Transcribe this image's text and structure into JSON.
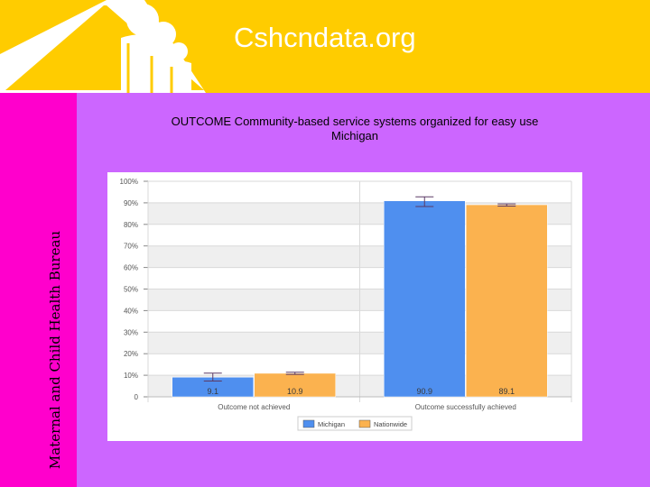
{
  "header": {
    "site_title": "Cshcndata.org"
  },
  "sidebar": {
    "vertical_label": "Maternal and Child Health Bureau"
  },
  "colors": {
    "header_bg": "#ffcc00",
    "page_bg": "#cc66ff",
    "side_band": "#ff00cc",
    "michigan": "#4f8fef",
    "nationwide": "#fbb24f"
  },
  "chart_data": {
    "type": "bar",
    "title": "OUTCOME Community-based service systems organized for easy use",
    "subtitle": "Michigan",
    "categories": [
      "Outcome not achieved",
      "Outcome successfully achieved"
    ],
    "series": [
      {
        "name": "Michigan",
        "values": [
          9.1,
          90.9
        ],
        "error_low": [
          7.3,
          88.3
        ],
        "error_high": [
          11.0,
          92.8
        ]
      },
      {
        "name": "Nationwide",
        "values": [
          10.9,
          89.1
        ],
        "error_low": [
          10.4,
          88.5
        ],
        "error_high": [
          11.4,
          89.5
        ]
      }
    ],
    "data_labels": [
      [
        "9.1",
        "90.9"
      ],
      [
        "10.9",
        "89.1"
      ]
    ],
    "yticks": [
      "0",
      "10%",
      "20%",
      "30%",
      "40%",
      "50%",
      "60%",
      "70%",
      "80%",
      "90%",
      "100%"
    ],
    "ylim": [
      0,
      100
    ],
    "grid": true,
    "legend": "bottom"
  }
}
